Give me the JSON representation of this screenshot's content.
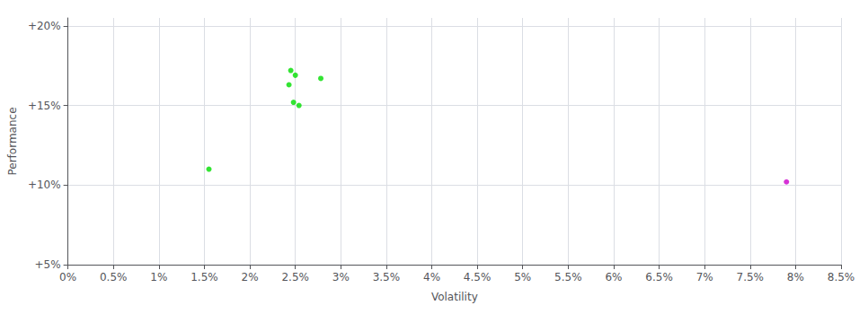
{
  "chart_data": {
    "type": "scatter",
    "xlabel": "Volatility",
    "ylabel": "Performance",
    "xlim": [
      0.0,
      0.085
    ],
    "ylim": [
      0.05,
      0.205
    ],
    "xticks": [
      {
        "value": 0.0,
        "label": "0%"
      },
      {
        "value": 0.005,
        "label": "0.5%"
      },
      {
        "value": 0.01,
        "label": "1%"
      },
      {
        "value": 0.015,
        "label": "1.5%"
      },
      {
        "value": 0.02,
        "label": "2%"
      },
      {
        "value": 0.025,
        "label": "2.5%"
      },
      {
        "value": 0.03,
        "label": "3%"
      },
      {
        "value": 0.035,
        "label": "3.5%"
      },
      {
        "value": 0.04,
        "label": "4%"
      },
      {
        "value": 0.045,
        "label": "4.5%"
      },
      {
        "value": 0.05,
        "label": "5%"
      },
      {
        "value": 0.055,
        "label": "5.5%"
      },
      {
        "value": 0.06,
        "label": "6%"
      },
      {
        "value": 0.065,
        "label": "6.5%"
      },
      {
        "value": 0.07,
        "label": "7%"
      },
      {
        "value": 0.075,
        "label": "7.5%"
      },
      {
        "value": 0.08,
        "label": "8%"
      },
      {
        "value": 0.085,
        "label": "8.5%"
      }
    ],
    "yticks": [
      {
        "value": 0.05,
        "label": "+5%"
      },
      {
        "value": 0.1,
        "label": "+10%"
      },
      {
        "value": 0.15,
        "label": "+15%"
      },
      {
        "value": 0.2,
        "label": "+20%"
      }
    ],
    "grid": true,
    "series": [
      {
        "color": "#00dd00",
        "x": [
          0.0245,
          0.025,
          0.0243,
          0.0248,
          0.0254,
          0.0278,
          0.0155
        ],
        "values": [
          0.172,
          0.169,
          0.163,
          0.152,
          0.15,
          0.167,
          0.11
        ]
      },
      {
        "color": "#cc00cc",
        "x": [
          0.079
        ],
        "values": [
          0.102
        ]
      }
    ]
  }
}
